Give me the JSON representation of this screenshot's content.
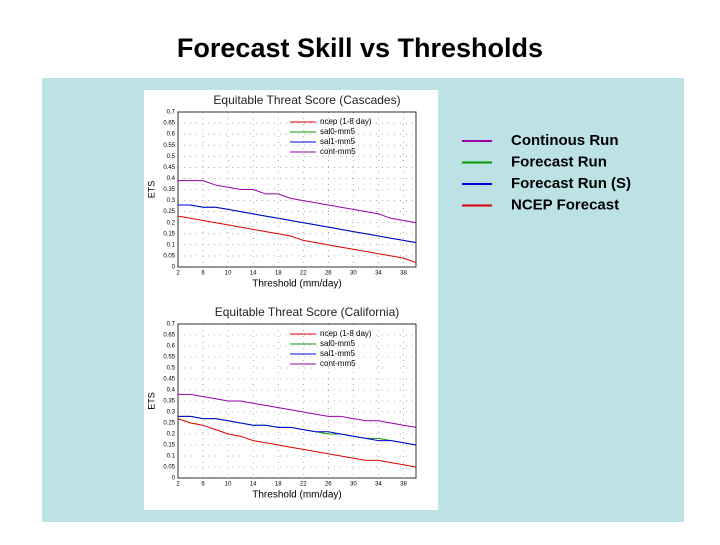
{
  "title": "Forecast Skill vs Thresholds",
  "legend": [
    {
      "label": "Continous Run",
      "color": "#9900aa"
    },
    {
      "label": "Forecast Run",
      "color": "#009900"
    },
    {
      "label": "Forecast Run (S)",
      "color": "#0000dd"
    },
    {
      "label": "NCEP Forecast",
      "color": "#dd0000"
    }
  ],
  "chart_data": [
    {
      "type": "line",
      "title": "Equitable Threat Score (Cascades)",
      "xlabel": "Threshold (mm/day)",
      "ylabel": "ETS",
      "x": [
        2,
        4,
        6,
        8,
        10,
        12,
        14,
        16,
        18,
        20,
        22,
        24,
        26,
        28,
        30,
        32,
        34,
        36,
        38,
        40
      ],
      "xlim": [
        2,
        40
      ],
      "xticks": [
        2,
        6,
        10,
        14,
        18,
        22,
        26,
        30,
        34,
        38
      ],
      "ylim": [
        0,
        0.7
      ],
      "yticks": [
        0,
        0.05,
        0.1,
        0.15,
        0.2,
        0.25,
        0.3,
        0.35,
        0.4,
        0.45,
        0.5,
        0.55,
        0.6,
        0.65,
        0.7
      ],
      "grid": true,
      "legend": "upper right",
      "series": [
        {
          "name": "ncep (1-8 day)",
          "color": "#dd0000",
          "values": [
            0.23,
            0.22,
            0.21,
            0.2,
            0.19,
            0.18,
            0.17,
            0.16,
            0.15,
            0.14,
            0.12,
            0.11,
            0.1,
            0.09,
            0.08,
            0.07,
            0.06,
            0.05,
            0.04,
            0.02
          ]
        },
        {
          "name": "sal0-mm5",
          "color": "#009900",
          "values": [
            0.28,
            0.28,
            0.27,
            0.27,
            0.26,
            0.25,
            0.24,
            0.23,
            0.22,
            0.21,
            0.2,
            0.19,
            0.18,
            0.17,
            0.16,
            0.15,
            0.14,
            0.13,
            0.12,
            0.11
          ]
        },
        {
          "name": "sal1-mm5",
          "color": "#0000dd",
          "values": [
            0.28,
            0.28,
            0.27,
            0.27,
            0.26,
            0.25,
            0.24,
            0.23,
            0.22,
            0.21,
            0.2,
            0.19,
            0.18,
            0.17,
            0.16,
            0.15,
            0.14,
            0.13,
            0.12,
            0.11
          ]
        },
        {
          "name": "cont-mm5",
          "color": "#9900aa",
          "values": [
            0.39,
            0.39,
            0.39,
            0.37,
            0.36,
            0.35,
            0.35,
            0.33,
            0.33,
            0.31,
            0.3,
            0.29,
            0.28,
            0.27,
            0.26,
            0.25,
            0.24,
            0.22,
            0.21,
            0.2
          ]
        }
      ]
    },
    {
      "type": "line",
      "title": "Equitable Threat Score (California)",
      "xlabel": "Threshold (mm/day)",
      "ylabel": "ETS",
      "x": [
        2,
        4,
        6,
        8,
        10,
        12,
        14,
        16,
        18,
        20,
        22,
        24,
        26,
        28,
        30,
        32,
        34,
        36,
        38,
        40
      ],
      "xlim": [
        2,
        40
      ],
      "xticks": [
        2,
        6,
        10,
        14,
        18,
        22,
        26,
        30,
        34,
        38
      ],
      "ylim": [
        0,
        0.7
      ],
      "yticks": [
        0,
        0.05,
        0.1,
        0.15,
        0.2,
        0.25,
        0.3,
        0.35,
        0.4,
        0.45,
        0.5,
        0.55,
        0.6,
        0.65,
        0.7
      ],
      "grid": true,
      "legend": "upper right",
      "series": [
        {
          "name": "ncep (1-8 day)",
          "color": "#dd0000",
          "values": [
            0.27,
            0.25,
            0.24,
            0.22,
            0.2,
            0.19,
            0.17,
            0.16,
            0.15,
            0.14,
            0.13,
            0.12,
            0.11,
            0.1,
            0.09,
            0.08,
            0.08,
            0.07,
            0.06,
            0.05
          ]
        },
        {
          "name": "sal0-mm5",
          "color": "#009900",
          "values": [
            0.28,
            0.28,
            0.27,
            0.27,
            0.26,
            0.25,
            0.24,
            0.24,
            0.23,
            0.23,
            0.22,
            0.21,
            0.2,
            0.2,
            0.19,
            0.18,
            0.18,
            0.17,
            0.16,
            0.15
          ]
        },
        {
          "name": "sal1-mm5",
          "color": "#0000dd",
          "values": [
            0.28,
            0.28,
            0.27,
            0.27,
            0.26,
            0.25,
            0.24,
            0.24,
            0.23,
            0.23,
            0.22,
            0.21,
            0.21,
            0.2,
            0.19,
            0.18,
            0.17,
            0.17,
            0.16,
            0.15
          ]
        },
        {
          "name": "cont-mm5",
          "color": "#9900aa",
          "values": [
            0.38,
            0.38,
            0.37,
            0.36,
            0.35,
            0.35,
            0.34,
            0.33,
            0.32,
            0.31,
            0.3,
            0.29,
            0.28,
            0.28,
            0.27,
            0.26,
            0.26,
            0.25,
            0.24,
            0.23
          ]
        }
      ]
    }
  ]
}
